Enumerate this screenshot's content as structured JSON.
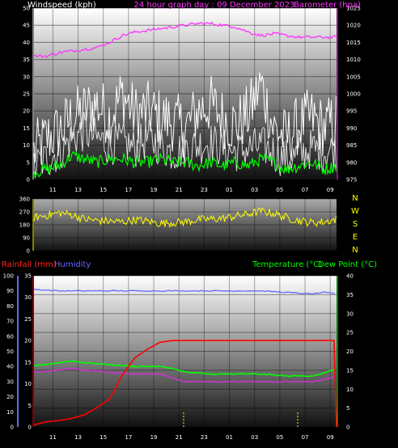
{
  "colors": {
    "windspeed": "#ffffff",
    "gust": "#ffffff",
    "avg_wind": "#00ff00",
    "barometer": "#ff33ff",
    "direction": "#ffff00",
    "rainfall": "#ff0000",
    "humidity": "#6666ff",
    "temperature": "#00ff00",
    "dew_point": "#cc33cc",
    "rain_axis": "#ff0000",
    "humidity_axis": "#6666ff",
    "temp_axis": "#00ff00"
  },
  "chart_data": [
    {
      "type": "line",
      "title": "24 hour graph day : 09 December 2023",
      "ylabel": "Windspeed (kph)",
      "y2label": "Barometer (hpa)",
      "x_ticks": [
        "11",
        "13",
        "15",
        "17",
        "19",
        "21",
        "23",
        "01",
        "03",
        "05",
        "07",
        "09"
      ],
      "ylim": [
        0,
        50
      ],
      "yticks": [
        0,
        5,
        10,
        15,
        20,
        25,
        30,
        35,
        40,
        45,
        50
      ],
      "y2lim": [
        975,
        1025
      ],
      "y2ticks": [
        975,
        980,
        985,
        990,
        995,
        1000,
        1005,
        1010,
        1015,
        1020,
        1025
      ],
      "grid": true,
      "series": [
        {
          "name": "Windspeed",
          "axis": "left",
          "x_hours": [
            0,
            1,
            2,
            3,
            4,
            5,
            6,
            7,
            8,
            9,
            10,
            11,
            12,
            13,
            14,
            15,
            16,
            17,
            18,
            19,
            20,
            21,
            22,
            23,
            24
          ],
          "values": [
            4,
            6,
            8,
            12,
            14,
            12,
            10,
            11,
            9,
            12,
            10,
            8,
            9,
            10,
            11,
            9,
            8,
            9,
            10,
            8,
            6,
            7,
            9,
            8,
            9
          ]
        },
        {
          "name": "Gust",
          "axis": "left",
          "x_hours": [
            0,
            1,
            2,
            3,
            4,
            5,
            6,
            7,
            8,
            9,
            10,
            11,
            12,
            13,
            14,
            15,
            16,
            17,
            18,
            19,
            20,
            21,
            22,
            23,
            24
          ],
          "values": [
            8,
            12,
            14,
            18,
            20,
            22,
            18,
            25,
            19,
            20,
            18,
            17,
            15,
            20,
            22,
            18,
            16,
            19,
            28,
            15,
            12,
            16,
            18,
            15,
            17
          ]
        },
        {
          "name": "Average wind",
          "axis": "left",
          "x_hours": [
            0,
            1,
            2,
            3,
            4,
            5,
            6,
            7,
            8,
            9,
            10,
            11,
            12,
            13,
            14,
            15,
            16,
            17,
            18,
            19,
            20,
            21,
            22,
            23,
            24
          ],
          "values": [
            2,
            3,
            4,
            7,
            6,
            5,
            6,
            6,
            5,
            5,
            6,
            5,
            5,
            4,
            5,
            4,
            5,
            4,
            6,
            5,
            3,
            4,
            5,
            3,
            4
          ]
        },
        {
          "name": "Barometer",
          "axis": "right",
          "x_hours": [
            0,
            1,
            2,
            3,
            4,
            5,
            6,
            7,
            8,
            9,
            10,
            11,
            12,
            13,
            14,
            15,
            16,
            17,
            18,
            19,
            20,
            21,
            22,
            23,
            24
          ],
          "values": [
            1011,
            1011,
            1012,
            1012.5,
            1013,
            1013.5,
            1015,
            1017,
            1018,
            1018.5,
            1019,
            1019.5,
            1020,
            1020.5,
            1020.5,
            1020,
            1019.5,
            1018,
            1017,
            1017.5,
            1017,
            1016.5,
            1016.5,
            1016.5,
            1016.5
          ]
        }
      ]
    },
    {
      "type": "line",
      "compass": [
        "N",
        "W",
        "S",
        "E",
        "N"
      ],
      "ylim": [
        0,
        360
      ],
      "yticks": [
        0,
        90,
        180,
        270,
        360
      ],
      "x_ticks": [
        "11",
        "13",
        "15",
        "17",
        "19",
        "21",
        "23",
        "01",
        "03",
        "05",
        "07",
        "09"
      ],
      "grid": true,
      "series": [
        {
          "name": "Wind direction",
          "x_hours": [
            0,
            1,
            2,
            3,
            4,
            5,
            6,
            7,
            8,
            9,
            10,
            11,
            12,
            13,
            14,
            15,
            16,
            17,
            18,
            19,
            20,
            21,
            22,
            23,
            24
          ],
          "values": [
            230,
            245,
            265,
            250,
            220,
            210,
            205,
            200,
            215,
            205,
            190,
            195,
            200,
            215,
            220,
            225,
            240,
            255,
            275,
            260,
            230,
            210,
            195,
            200,
            220
          ]
        }
      ]
    },
    {
      "type": "line",
      "legend": [
        "Rainfall (mm)",
        "Humidity",
        "Temperature (°C)",
        "Dew Point (°C)"
      ],
      "x_ticks": [
        "11",
        "13",
        "15",
        "17",
        "19",
        "21",
        "23",
        "01",
        "03",
        "05",
        "07",
        "09"
      ],
      "ylim_left_humidity": [
        0,
        100
      ],
      "yticks_left_humidity": [
        0,
        10,
        20,
        30,
        40,
        50,
        60,
        70,
        80,
        90,
        100
      ],
      "ylim_left_rain": [
        0,
        35
      ],
      "yticks_left_rain": [
        0,
        5,
        10,
        15,
        20,
        25,
        30,
        35
      ],
      "ylim_right": [
        0,
        40
      ],
      "yticks_right": [
        0,
        5,
        10,
        15,
        20,
        25,
        30,
        35,
        40
      ],
      "grid": true,
      "series": [
        {
          "name": "Humidity",
          "axis": "humidity",
          "x_hours": [
            0,
            2,
            4,
            6,
            8,
            10,
            12,
            14,
            16,
            18,
            20,
            22,
            23,
            24
          ],
          "values": [
            91,
            90,
            90,
            90,
            90,
            90,
            90,
            90,
            90,
            90,
            89,
            88,
            89,
            88
          ]
        },
        {
          "name": "Rainfall",
          "axis": "rain",
          "x_hours": [
            0,
            1,
            2,
            3,
            4,
            5,
            6,
            7,
            8,
            9,
            10,
            11,
            12,
            14,
            16,
            18,
            20,
            22,
            23.4,
            23.8,
            24
          ],
          "values": [
            0.5,
            1.2,
            1.5,
            2,
            2.8,
            4.5,
            6.5,
            12,
            16,
            18,
            19.6,
            20,
            20,
            20,
            20,
            20,
            20,
            20,
            20,
            20,
            0
          ]
        },
        {
          "name": "Temperature",
          "axis": "right",
          "x_hours": [
            0,
            2,
            3,
            4,
            6,
            8,
            10,
            11,
            12,
            14,
            16,
            18,
            20,
            22,
            23,
            24
          ],
          "values": [
            16.2,
            17,
            17.5,
            17,
            16.5,
            16,
            16,
            15.5,
            14.5,
            14,
            14,
            14,
            13.5,
            13.5,
            14.2,
            15.5
          ]
        },
        {
          "name": "Dew Point",
          "axis": "right",
          "x_hours": [
            0,
            2,
            3,
            4,
            6,
            8,
            10,
            11,
            12,
            14,
            16,
            18,
            20,
            22,
            23,
            24
          ],
          "values": [
            14.5,
            15,
            15.5,
            15,
            14.5,
            14,
            14,
            13,
            12,
            12,
            12,
            12,
            12,
            12,
            12.5,
            13.5
          ]
        }
      ]
    }
  ]
}
